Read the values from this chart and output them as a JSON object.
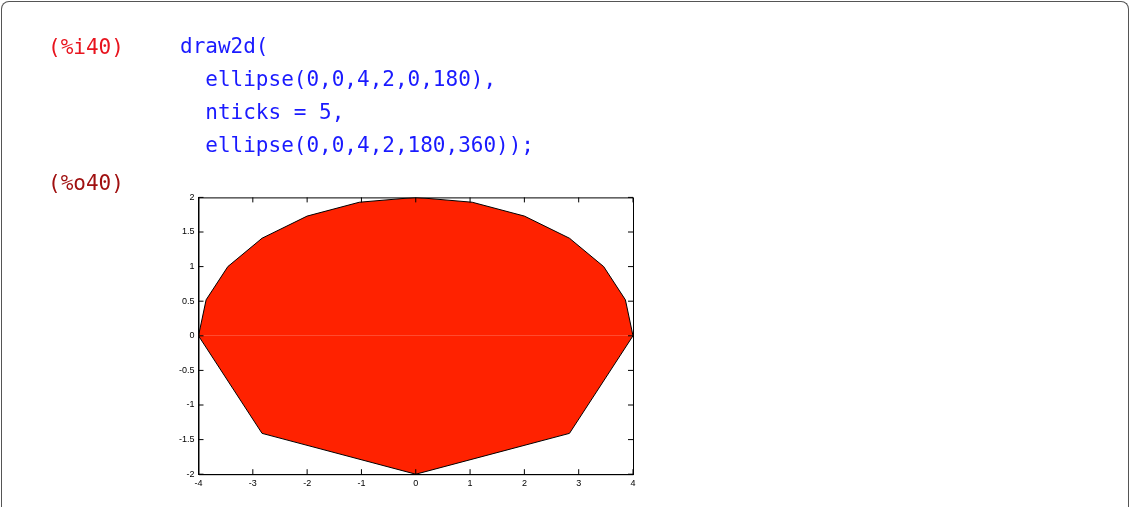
{
  "chart_data": {
    "type": "area",
    "annotations": [
      "(%i40)",
      "draw2d(",
      "  ellipse(0,0,4,2,0,180),",
      "  nticks = 5,",
      "  ellipse(0,0,4,2,180,360));",
      "(%o40)"
    ],
    "series": [
      {
        "color": "#ff2200",
        "x": [
          4,
          3.86,
          3.46,
          2.83,
          2,
          1.04,
          0,
          -1.04,
          -2,
          -2.83,
          -3.46,
          -3.86,
          -4
        ],
        "values": [
          0,
          0.52,
          1,
          1.41,
          1.73,
          1.93,
          2,
          1.93,
          1.73,
          1.41,
          1,
          0.52,
          0
        ]
      },
      {
        "color": "#ff2200",
        "x": [
          -4,
          -2.83,
          0,
          2.83,
          4
        ],
        "values": [
          0,
          -1.41,
          -2,
          -1.41,
          0
        ]
      }
    ],
    "xlim": [
      -4,
      4
    ],
    "xticks": [
      -4,
      -3,
      -2,
      -1,
      0,
      1,
      2,
      3,
      4
    ],
    "ylim": [
      -2,
      2
    ],
    "yticks": [
      -2,
      -1.5,
      -1,
      -0.5,
      0,
      0.5,
      1,
      1.5,
      2
    ],
    "grid": false,
    "legend": false,
    "marker": "none",
    "line_style": "solid"
  }
}
